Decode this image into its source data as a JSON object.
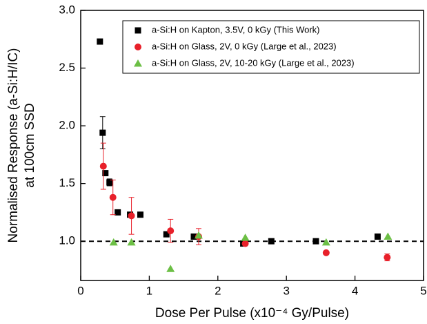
{
  "chart_data": {
    "type": "scatter",
    "xlabel": "Dose Per Pulse (x10⁻⁴ Gy/Pulse)",
    "ylabel": [
      "Normalised Response (a-Si:H/IC)",
      "at 100cm SSD"
    ],
    "xlim": [
      0,
      5
    ],
    "ylim": [
      0.66,
      3.0
    ],
    "xticks": [
      0,
      1,
      2,
      3,
      4,
      5
    ],
    "yticks": [
      {
        "value": 1,
        "label": "1.0"
      },
      {
        "value": 1.5,
        "label": "1.5"
      },
      {
        "value": 2,
        "label": "2.0"
      },
      {
        "value": 2.5,
        "label": "2.5"
      },
      {
        "value": 3,
        "label": "3.0"
      }
    ],
    "hline": 1,
    "legend": "upper right",
    "series": [
      {
        "name": "a-Si:H on Kapton, 3.5V, 0 kGy (This Work)",
        "color": "#000000",
        "marker": "square",
        "x": [
          0.28,
          0.32,
          0.36,
          0.42,
          0.54,
          0.72,
          0.87,
          1.25,
          1.65,
          2.37,
          2.78,
          3.43,
          4.33
        ],
        "values": [
          2.73,
          1.94,
          1.59,
          1.51,
          1.25,
          1.23,
          1.23,
          1.06,
          1.04,
          0.98,
          1.0,
          1.0,
          1.04
        ],
        "errors": [
          null,
          0.14,
          null,
          0.03,
          null,
          null,
          null,
          null,
          null,
          null,
          null,
          null,
          null
        ]
      },
      {
        "name": "a-Si:H on Glass, 2V, 0 kGy (Large et al., 2023)",
        "color": "#e8202a",
        "marker": "circle",
        "x": [
          0.33,
          0.47,
          0.74,
          1.31,
          1.72,
          2.4,
          3.58,
          4.47
        ],
        "values": [
          1.65,
          1.38,
          1.22,
          1.09,
          1.04,
          0.98,
          0.9,
          0.86
        ],
        "errors": [
          0.2,
          0.15,
          0.16,
          0.1,
          0.07,
          null,
          null,
          0.03
        ]
      },
      {
        "name": "a-Si:H on Glass, 2V, 10-20 kGy (Large et al., 2023)",
        "color": "#6cbf45",
        "marker": "triangle",
        "x": [
          0.48,
          0.74,
          1.31,
          1.72,
          2.4,
          3.58,
          4.48
        ],
        "values": [
          0.99,
          0.99,
          0.76,
          1.05,
          1.03,
          0.99,
          1.04
        ],
        "errors": [
          null,
          null,
          null,
          null,
          null,
          null,
          null
        ]
      }
    ]
  }
}
